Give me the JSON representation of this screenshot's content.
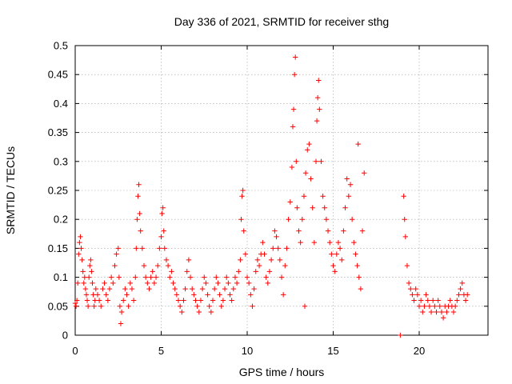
{
  "chart_data": {
    "type": "scatter",
    "title": "Day 336 of 2021, SRMTID for receiver sthg",
    "xlabel": "GPS time / hours",
    "ylabel": "SRMTID / TECUs",
    "xlim": [
      0,
      24
    ],
    "ylim": [
      0,
      0.5
    ],
    "x_ticks": [
      0,
      5,
      10,
      15,
      20
    ],
    "x_tick_labels": [
      "0",
      "5",
      "10",
      "15",
      "20"
    ],
    "y_ticks": [
      0,
      0.05,
      0.1,
      0.15,
      0.2,
      0.25,
      0.3,
      0.35,
      0.4,
      0.45,
      0.5
    ],
    "y_tick_labels": [
      "0",
      "0.05",
      "0.1",
      "0.15",
      "0.2",
      "0.25",
      "0.3",
      "0.35",
      "0.4",
      "0.45",
      "0.5"
    ],
    "grid": true,
    "marker": "+",
    "color": "#ff0000",
    "series": [
      {
        "name": "SRMTID",
        "points": [
          [
            0.0,
            0.055
          ],
          [
            0.05,
            0.05
          ],
          [
            0.1,
            0.06
          ],
          [
            0.15,
            0.09
          ],
          [
            0.2,
            0.14
          ],
          [
            0.25,
            0.16
          ],
          [
            0.3,
            0.17
          ],
          [
            0.35,
            0.15
          ],
          [
            0.4,
            0.13
          ],
          [
            0.45,
            0.11
          ],
          [
            0.5,
            0.09
          ],
          [
            0.55,
            0.1
          ],
          [
            0.6,
            0.08
          ],
          [
            0.65,
            0.07
          ],
          [
            0.7,
            0.06
          ],
          [
            0.75,
            0.05
          ],
          [
            0.8,
            0.1
          ],
          [
            0.85,
            0.12
          ],
          [
            0.9,
            0.13
          ],
          [
            0.95,
            0.11
          ],
          [
            1.0,
            0.09
          ],
          [
            1.05,
            0.07
          ],
          [
            1.1,
            0.05
          ],
          [
            1.15,
            0.06
          ],
          [
            1.2,
            0.08
          ],
          [
            1.3,
            0.07
          ],
          [
            1.4,
            0.06
          ],
          [
            1.5,
            0.05
          ],
          [
            1.6,
            0.08
          ],
          [
            1.7,
            0.09
          ],
          [
            1.8,
            0.07
          ],
          [
            1.9,
            0.06
          ],
          [
            2.0,
            0.08
          ],
          [
            2.1,
            0.1
          ],
          [
            2.2,
            0.09
          ],
          [
            2.3,
            0.12
          ],
          [
            2.4,
            0.14
          ],
          [
            2.5,
            0.15
          ],
          [
            2.55,
            0.1
          ],
          [
            2.6,
            0.05
          ],
          [
            2.65,
            0.02
          ],
          [
            2.7,
            0.04
          ],
          [
            2.8,
            0.06
          ],
          [
            2.9,
            0.08
          ],
          [
            3.0,
            0.07
          ],
          [
            3.1,
            0.05
          ],
          [
            3.2,
            0.09
          ],
          [
            3.3,
            0.08
          ],
          [
            3.4,
            0.06
          ],
          [
            3.5,
            0.1
          ],
          [
            3.55,
            0.15
          ],
          [
            3.6,
            0.2
          ],
          [
            3.65,
            0.24
          ],
          [
            3.7,
            0.26
          ],
          [
            3.75,
            0.21
          ],
          [
            3.8,
            0.18
          ],
          [
            3.9,
            0.15
          ],
          [
            4.0,
            0.12
          ],
          [
            4.1,
            0.1
          ],
          [
            4.2,
            0.09
          ],
          [
            4.3,
            0.08
          ],
          [
            4.4,
            0.1
          ],
          [
            4.5,
            0.11
          ],
          [
            4.6,
            0.09
          ],
          [
            4.7,
            0.1
          ],
          [
            4.8,
            0.12
          ],
          [
            4.9,
            0.15
          ],
          [
            5.0,
            0.17
          ],
          [
            5.05,
            0.21
          ],
          [
            5.1,
            0.22
          ],
          [
            5.15,
            0.18
          ],
          [
            5.2,
            0.15
          ],
          [
            5.3,
            0.13
          ],
          [
            5.4,
            0.12
          ],
          [
            5.5,
            0.1
          ],
          [
            5.6,
            0.11
          ],
          [
            5.7,
            0.09
          ],
          [
            5.8,
            0.08
          ],
          [
            5.9,
            0.07
          ],
          [
            6.0,
            0.06
          ],
          [
            6.1,
            0.05
          ],
          [
            6.2,
            0.04
          ],
          [
            6.3,
            0.06
          ],
          [
            6.4,
            0.08
          ],
          [
            6.5,
            0.11
          ],
          [
            6.6,
            0.13
          ],
          [
            6.7,
            0.1
          ],
          [
            6.8,
            0.08
          ],
          [
            6.9,
            0.07
          ],
          [
            7.0,
            0.06
          ],
          [
            7.1,
            0.05
          ],
          [
            7.2,
            0.04
          ],
          [
            7.3,
            0.06
          ],
          [
            7.4,
            0.08
          ],
          [
            7.5,
            0.1
          ],
          [
            7.6,
            0.09
          ],
          [
            7.7,
            0.07
          ],
          [
            7.8,
            0.05
          ],
          [
            7.9,
            0.04
          ],
          [
            8.0,
            0.06
          ],
          [
            8.1,
            0.08
          ],
          [
            8.2,
            0.1
          ],
          [
            8.3,
            0.09
          ],
          [
            8.4,
            0.07
          ],
          [
            8.5,
            0.05
          ],
          [
            8.6,
            0.06
          ],
          [
            8.7,
            0.08
          ],
          [
            8.8,
            0.1
          ],
          [
            8.9,
            0.09
          ],
          [
            9.0,
            0.07
          ],
          [
            9.1,
            0.06
          ],
          [
            9.2,
            0.08
          ],
          [
            9.3,
            0.1
          ],
          [
            9.4,
            0.09
          ],
          [
            9.5,
            0.11
          ],
          [
            9.6,
            0.13
          ],
          [
            9.65,
            0.2
          ],
          [
            9.7,
            0.24
          ],
          [
            9.75,
            0.25
          ],
          [
            9.8,
            0.18
          ],
          [
            9.9,
            0.14
          ],
          [
            10.0,
            0.1
          ],
          [
            10.1,
            0.09
          ],
          [
            10.2,
            0.07
          ],
          [
            10.3,
            0.05
          ],
          [
            10.4,
            0.08
          ],
          [
            10.5,
            0.11
          ],
          [
            10.6,
            0.13
          ],
          [
            10.7,
            0.12
          ],
          [
            10.8,
            0.14
          ],
          [
            10.9,
            0.16
          ],
          [
            11.0,
            0.14
          ],
          [
            11.1,
            0.1
          ],
          [
            11.2,
            0.09
          ],
          [
            11.3,
            0.11
          ],
          [
            11.4,
            0.13
          ],
          [
            11.5,
            0.15
          ],
          [
            11.6,
            0.18
          ],
          [
            11.7,
            0.17
          ],
          [
            11.8,
            0.15
          ],
          [
            11.9,
            0.13
          ],
          [
            12.0,
            0.1
          ],
          [
            12.1,
            0.07
          ],
          [
            12.2,
            0.12
          ],
          [
            12.3,
            0.15
          ],
          [
            12.4,
            0.2
          ],
          [
            12.5,
            0.23
          ],
          [
            12.6,
            0.29
          ],
          [
            12.65,
            0.36
          ],
          [
            12.7,
            0.39
          ],
          [
            12.75,
            0.45
          ],
          [
            12.8,
            0.48
          ],
          [
            12.85,
            0.3
          ],
          [
            12.9,
            0.22
          ],
          [
            13.0,
            0.18
          ],
          [
            13.1,
            0.16
          ],
          [
            13.2,
            0.2
          ],
          [
            13.3,
            0.24
          ],
          [
            13.35,
            0.05
          ],
          [
            13.4,
            0.28
          ],
          [
            13.5,
            0.32
          ],
          [
            13.6,
            0.33
          ],
          [
            13.7,
            0.27
          ],
          [
            13.8,
            0.22
          ],
          [
            13.9,
            0.16
          ],
          [
            14.0,
            0.3
          ],
          [
            14.05,
            0.37
          ],
          [
            14.1,
            0.41
          ],
          [
            14.15,
            0.44
          ],
          [
            14.2,
            0.39
          ],
          [
            14.3,
            0.3
          ],
          [
            14.4,
            0.24
          ],
          [
            14.5,
            0.22
          ],
          [
            14.6,
            0.2
          ],
          [
            14.7,
            0.18
          ],
          [
            14.8,
            0.16
          ],
          [
            14.9,
            0.14
          ],
          [
            15.0,
            0.12
          ],
          [
            15.1,
            0.11
          ],
          [
            15.2,
            0.14
          ],
          [
            15.3,
            0.16
          ],
          [
            15.4,
            0.15
          ],
          [
            15.5,
            0.13
          ],
          [
            15.6,
            0.18
          ],
          [
            15.7,
            0.22
          ],
          [
            15.8,
            0.27
          ],
          [
            15.9,
            0.24
          ],
          [
            16.0,
            0.26
          ],
          [
            16.1,
            0.2
          ],
          [
            16.2,
            0.16
          ],
          [
            16.3,
            0.14
          ],
          [
            16.4,
            0.12
          ],
          [
            16.45,
            0.33
          ],
          [
            16.5,
            0.1
          ],
          [
            16.6,
            0.08
          ],
          [
            16.7,
            0.18
          ],
          [
            16.8,
            0.28
          ],
          [
            18.9,
            0.0
          ],
          [
            19.1,
            0.24
          ],
          [
            19.15,
            0.2
          ],
          [
            19.2,
            0.17
          ],
          [
            19.3,
            0.12
          ],
          [
            19.4,
            0.09
          ],
          [
            19.5,
            0.08
          ],
          [
            19.6,
            0.07
          ],
          [
            19.7,
            0.06
          ],
          [
            19.8,
            0.08
          ],
          [
            19.9,
            0.07
          ],
          [
            20.0,
            0.05
          ],
          [
            20.1,
            0.06
          ],
          [
            20.2,
            0.04
          ],
          [
            20.3,
            0.05
          ],
          [
            20.4,
            0.07
          ],
          [
            20.5,
            0.06
          ],
          [
            20.6,
            0.05
          ],
          [
            20.7,
            0.04
          ],
          [
            20.8,
            0.06
          ],
          [
            20.9,
            0.05
          ],
          [
            21.0,
            0.04
          ],
          [
            21.1,
            0.06
          ],
          [
            21.2,
            0.05
          ],
          [
            21.3,
            0.04
          ],
          [
            21.4,
            0.03
          ],
          [
            21.5,
            0.05
          ],
          [
            21.6,
            0.04
          ],
          [
            21.7,
            0.05
          ],
          [
            21.8,
            0.06
          ],
          [
            21.9,
            0.05
          ],
          [
            22.0,
            0.04
          ],
          [
            22.1,
            0.05
          ],
          [
            22.2,
            0.06
          ],
          [
            22.3,
            0.07
          ],
          [
            22.4,
            0.08
          ],
          [
            22.5,
            0.09
          ],
          [
            22.6,
            0.07
          ],
          [
            22.7,
            0.06
          ],
          [
            22.8,
            0.07
          ]
        ]
      }
    ]
  }
}
